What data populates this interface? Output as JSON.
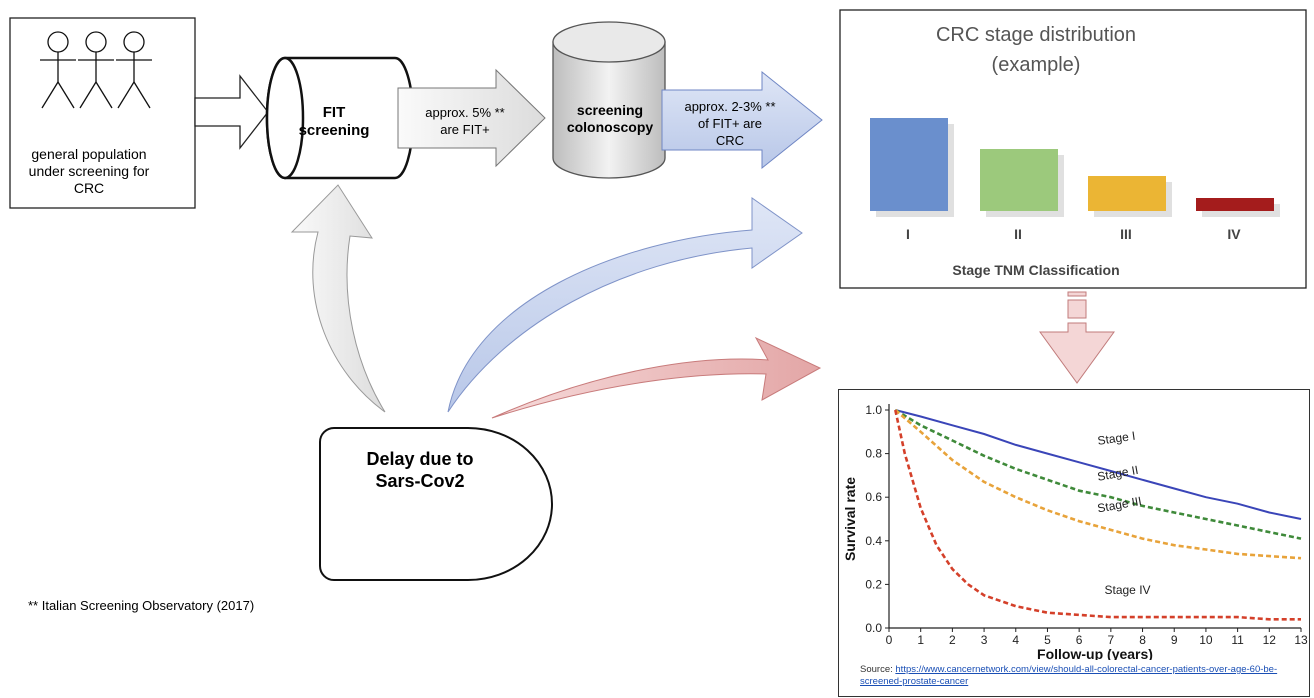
{
  "population": {
    "label_lines": [
      "general population",
      "under screening for",
      "CRC"
    ]
  },
  "fit": {
    "label_lines": [
      "FIT",
      "screening"
    ]
  },
  "arrow_fit_pos": {
    "label_lines": [
      "approx.  5% **",
      "are  FIT+"
    ]
  },
  "colonoscopy": {
    "label_lines": [
      "screening",
      "colonoscopy"
    ]
  },
  "arrow_crc": {
    "label_lines": [
      "approx. 2-3% **",
      "of FIT+ are",
      "CRC"
    ]
  },
  "delay": {
    "label_lines": [
      "Delay due to",
      "Sars-Cov2"
    ]
  },
  "footnote": "** Italian Screening Observatory (2017)",
  "colors": {
    "blue_arrow": "#c9d5ee",
    "red_arrow": "#e9b7b7",
    "gray_arrow": "#ececec"
  },
  "chart_data": [
    {
      "type": "bar",
      "title": "CRC stage distribution",
      "subtitle": "(example)",
      "categories": [
        "I",
        "II",
        "III",
        "IV"
      ],
      "values": [
        93,
        62,
        35,
        13
      ],
      "colors": [
        "#6a8fcd",
        "#9cc97c",
        "#ebb534",
        "#a41c1c"
      ],
      "xlabel": "Stage TNM Classification",
      "ylabel": "",
      "ylim": [
        0,
        100
      ],
      "grid": false
    },
    {
      "type": "line",
      "xlabel": "Follow-up (years)",
      "ylabel": "Survival rate",
      "xlim": [
        0,
        13
      ],
      "ylim": [
        0,
        1.0
      ],
      "xticks": [
        "0",
        "1",
        "2",
        "3",
        "4",
        "5",
        "6",
        "7",
        "8",
        "9",
        "10",
        "11",
        "12",
        "13"
      ],
      "yticks": [
        "0.0",
        "0.2",
        "0.4",
        "0.6",
        "0.8",
        "1.0"
      ],
      "series": [
        {
          "name": "Stage I",
          "color": "#3a45b8",
          "style": "solid",
          "x": [
            0.2,
            1,
            2,
            3,
            4,
            5,
            6,
            7,
            8,
            9,
            10,
            11,
            12,
            13
          ],
          "y": [
            1.0,
            0.97,
            0.93,
            0.89,
            0.84,
            0.8,
            0.76,
            0.72,
            0.68,
            0.64,
            0.6,
            0.57,
            0.53,
            0.5
          ]
        },
        {
          "name": "Stage II",
          "color": "#3f8a3a",
          "style": "dashed",
          "x": [
            0.2,
            1,
            2,
            3,
            4,
            5,
            6,
            7,
            8,
            9,
            10,
            11,
            12,
            13
          ],
          "y": [
            1.0,
            0.93,
            0.86,
            0.79,
            0.73,
            0.68,
            0.63,
            0.6,
            0.56,
            0.53,
            0.5,
            0.47,
            0.44,
            0.41
          ]
        },
        {
          "name": "Stage III",
          "color": "#e8a33a",
          "style": "dashed",
          "x": [
            0.2,
            1,
            2,
            3,
            4,
            5,
            6,
            7,
            8,
            9,
            10,
            11,
            12,
            13
          ],
          "y": [
            1.0,
            0.9,
            0.77,
            0.67,
            0.6,
            0.54,
            0.49,
            0.45,
            0.41,
            0.38,
            0.36,
            0.34,
            0.33,
            0.32
          ]
        },
        {
          "name": "Stage IV",
          "color": "#d4402a",
          "style": "dashed",
          "x": [
            0.2,
            0.5,
            1,
            1.5,
            2,
            2.5,
            3,
            4,
            5,
            6,
            7,
            8,
            9,
            10,
            11,
            12,
            13
          ],
          "y": [
            1.0,
            0.8,
            0.55,
            0.38,
            0.27,
            0.2,
            0.15,
            0.1,
            0.07,
            0.06,
            0.05,
            0.05,
            0.05,
            0.05,
            0.05,
            0.04,
            0.04
          ]
        }
      ]
    }
  ],
  "source": {
    "prefix": "Source: ",
    "url": "https://www.cancernetwork.com/view/should-all-colorectal-cancer-patients-over-age-60-be-screened-prostate-cancer"
  }
}
